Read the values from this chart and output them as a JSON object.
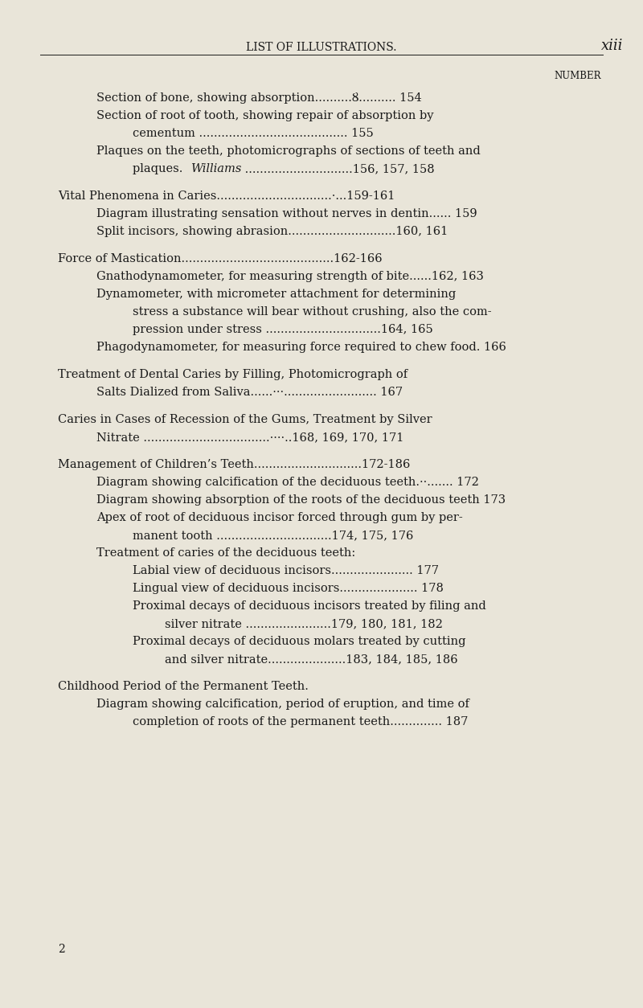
{
  "bg_color": "#e9e5d9",
  "text_color": "#1a1a1a",
  "page_header_left": "LIST OF ILLUSTRATIONS.",
  "page_header_right": "xiii",
  "number_label": "NUMBER",
  "footer_number": "2",
  "entries": [
    {
      "indent": 1,
      "text": "Section of bone, showing absorption..........Ȣ.......... 154",
      "smallcaps": false
    },
    {
      "indent": 1,
      "text": "Section of root of tooth, showing repair of absorption by",
      "smallcaps": false
    },
    {
      "indent": 2,
      "text": "cementum ........................................ 155",
      "smallcaps": false
    },
    {
      "indent": 1,
      "text": "Plaques on the teeth, photomicrographs of sections of teeth and",
      "smallcaps": false
    },
    {
      "indent": 2,
      "text": "plaques.  \\italic{Williams} .............................156, 157, 158",
      "smallcaps": false
    },
    {
      "indent": 0,
      "text": "Vital Phenomena in Caries...............................·...159-161",
      "smallcaps": true,
      "gap_before": true
    },
    {
      "indent": 1,
      "text": "Diagram illustrating sensation without nerves in dentin...... 159",
      "smallcaps": false
    },
    {
      "indent": 1,
      "text": "Split incisors, showing abrasion.............................160, 161",
      "smallcaps": false
    },
    {
      "indent": 0,
      "text": "Force of Mastication.........................................162-166",
      "smallcaps": true,
      "gap_before": true
    },
    {
      "indent": 1,
      "text": "Gnathodynamometer, for measuring strength of bite......162, 163",
      "smallcaps": false
    },
    {
      "indent": 1,
      "text": "Dynamometer, with micrometer attachment for determining",
      "smallcaps": false
    },
    {
      "indent": 2,
      "text": "stress a substance will bear without crushing, also the com-",
      "smallcaps": false
    },
    {
      "indent": 2,
      "text": "pression under stress ...............................164, 165",
      "smallcaps": false
    },
    {
      "indent": 1,
      "text": "Phagodynamometer, for measuring force required to chew food. 166",
      "smallcaps": false
    },
    {
      "indent": 0,
      "text": "Treatment of Dental Caries by Filling, Photomicrograph of",
      "smallcaps": true,
      "gap_before": true
    },
    {
      "indent": 1,
      "text": "Salts Dialized from Saliva......···......................... 167",
      "smallcaps": true
    },
    {
      "indent": 0,
      "text": "Caries in Cases of Recession of the Gums, Treatment by Silver",
      "smallcaps": true,
      "gap_before": true
    },
    {
      "indent": 1,
      "text": "Nitrate ..................................····..168, 169, 170, 171",
      "smallcaps": true
    },
    {
      "indent": 0,
      "text": "Management of Children’s Teeth.............................172-186",
      "smallcaps": true,
      "gap_before": true
    },
    {
      "indent": 1,
      "text": "Diagram showing calcification of the deciduous teeth.··....... 172",
      "smallcaps": false
    },
    {
      "indent": 1,
      "text": "Diagram showing absorption of the roots of the deciduous teeth 173",
      "smallcaps": false
    },
    {
      "indent": 1,
      "text": "Apex of root of deciduous incisor forced through gum by per-",
      "smallcaps": false
    },
    {
      "indent": 2,
      "text": "manent tooth ...............................174, 175, 176",
      "smallcaps": false
    },
    {
      "indent": 1,
      "text": "Treatment of caries of the deciduous teeth:",
      "smallcaps": false
    },
    {
      "indent": 2,
      "text": "Labial view of deciduous incisors...................... 177",
      "smallcaps": false
    },
    {
      "indent": 2,
      "text": "Lingual view of deciduous incisors..................... 178",
      "smallcaps": false
    },
    {
      "indent": 2,
      "text": "Proximal decays of deciduous incisors treated by filing and",
      "smallcaps": false
    },
    {
      "indent": 3,
      "text": "silver nitrate .......................179, 180, 181, 182",
      "smallcaps": false
    },
    {
      "indent": 2,
      "text": "Proximal decays of deciduous molars treated by cutting",
      "smallcaps": false
    },
    {
      "indent": 3,
      "text": "and silver nitrate.....................183, 184, 185, 186",
      "smallcaps": false
    },
    {
      "indent": 0,
      "text": "Childhood Period of the Permanent Teeth.",
      "smallcaps": true,
      "gap_before": true
    },
    {
      "indent": 1,
      "text": "Diagram showing calcification, period of eruption, and time of",
      "smallcaps": false
    },
    {
      "indent": 2,
      "text": "completion of roots of the permanent teeth.............. 187",
      "smallcaps": false
    }
  ]
}
